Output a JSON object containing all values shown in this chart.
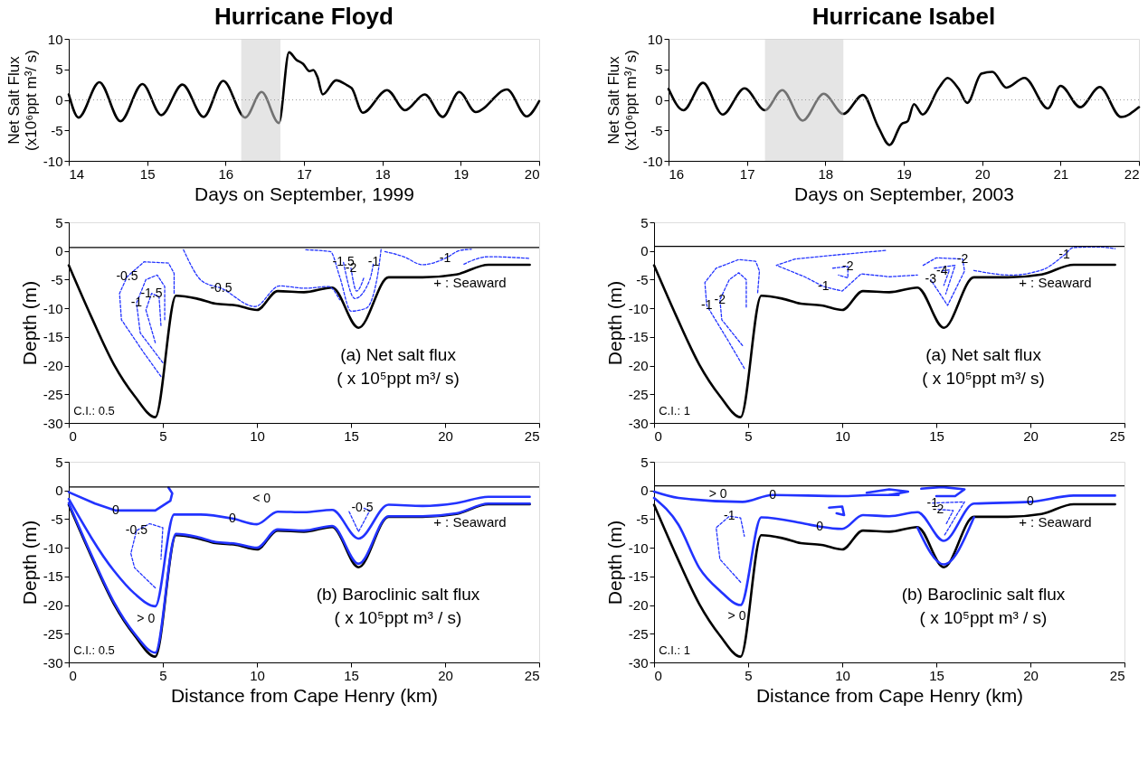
{
  "chart_data": [
    {
      "type": "line",
      "title": "Hurricane Floyd",
      "xlabel": "Days on September, 1999",
      "ylabel": "Net Salt Flux\n(x10⁶ppt m³/ s)",
      "xlim": [
        14,
        20
      ],
      "xticks": [
        14,
        15,
        16,
        17,
        18,
        19,
        20
      ],
      "ylim": [
        -10,
        10
      ],
      "yticks": [
        -10,
        -5,
        0,
        5,
        10
      ],
      "grid": false,
      "line_style": "solid",
      "series": [
        {
          "color": "#000000",
          "x": [
            14.0,
            14.125,
            14.39,
            14.66,
            14.94,
            15.18,
            15.45,
            15.72,
            15.97,
            16.25,
            16.46,
            16.68,
            16.81,
            16.9,
            16.99,
            17.07,
            17.12,
            17.17,
            17.24,
            17.41,
            17.55,
            17.61,
            17.75,
            18.06,
            18.29,
            18.54,
            18.77,
            18.98,
            19.19,
            19.59,
            19.84,
            20.0
          ],
          "values": [
            0.9,
            -2.9,
            2.9,
            -3.5,
            2.6,
            -2.5,
            2.5,
            -2.8,
            3.1,
            -2.9,
            1.3,
            -3.8,
            7.8,
            6.6,
            5.9,
            4.7,
            4.9,
            3.8,
            0.9,
            3.2,
            2.4,
            1.9,
            -2.1,
            1.6,
            -1.7,
            0.9,
            -2.8,
            1.3,
            -2.0,
            1.7,
            -2.7,
            -0.2
          ]
        }
      ],
      "bands": [
        {
          "axis": "x",
          "from": 16.2,
          "to": 16.7,
          "color": "#d0d0d0"
        }
      ],
      "ref_lines": [
        {
          "axis": "y",
          "value": 0,
          "color": "#999999",
          "line_style": "dotted"
        }
      ]
    },
    {
      "type": "line",
      "title": "Hurricane Isabel",
      "xlabel": "Days on September, 2003",
      "ylabel": "Net Salt Flux\n(x10⁶ppt m³/ s)",
      "xlim": [
        16,
        22
      ],
      "xticks": [
        16,
        17,
        18,
        19,
        20,
        21,
        22
      ],
      "ylim": [
        -10,
        10
      ],
      "yticks": [
        -10,
        -5,
        0,
        5,
        10
      ],
      "grid": false,
      "line_style": "solid",
      "series": [
        {
          "color": "#000000",
          "x": [
            16.0,
            16.19,
            16.44,
            16.69,
            16.97,
            17.23,
            17.45,
            17.71,
            17.98,
            18.23,
            18.48,
            18.67,
            18.82,
            18.97,
            19.05,
            19.13,
            19.24,
            19.45,
            19.56,
            19.7,
            19.81,
            19.99,
            20.13,
            20.31,
            20.54,
            20.84,
            21.0,
            21.25,
            21.5,
            21.77,
            22.0
          ],
          "values": [
            1.8,
            -1.7,
            2.8,
            -2.4,
            1.9,
            -1.7,
            1.6,
            -3.4,
            1.0,
            -2.3,
            0.8,
            -4.3,
            -7.4,
            -4.0,
            -3.5,
            -0.7,
            -2.4,
            2.0,
            3.6,
            1.8,
            -0.5,
            4.3,
            4.6,
            2.0,
            3.6,
            -1.4,
            2.3,
            -1.2,
            2.1,
            -2.8,
            -1.2
          ]
        }
      ],
      "bands": [
        {
          "axis": "x",
          "from": 17.23,
          "to": 18.23,
          "color": "#d0d0d0"
        }
      ],
      "ref_lines": [
        {
          "axis": "y",
          "value": 0,
          "color": "#999999",
          "line_style": "dotted"
        }
      ]
    },
    {
      "type": "line",
      "ylabel": "Depth (m)",
      "xlim": [
        0,
        25
      ],
      "xticks": [
        0,
        5,
        10,
        15,
        20,
        25
      ],
      "ylim": [
        -30,
        5
      ],
      "yticks": [
        -30,
        -25,
        -20,
        -15,
        -10,
        -5,
        0,
        5
      ],
      "grid": false,
      "series": [
        {
          "color": "#000000",
          "line_style": "solid",
          "x": [
            0,
            1.2,
            2.4,
            3.5,
            4.6,
            5.7,
            6.8,
            7.8,
            8.9,
            10,
            11.1,
            12.5,
            14,
            15.4,
            17,
            18.8,
            20.6,
            22.3,
            24.5
          ],
          "values": [
            -2.5,
            -11.5,
            -19.8,
            -25.3,
            -29,
            -7.8,
            -8.3,
            -9.2,
            -9.5,
            -10.3,
            -7,
            -7.2,
            -6.4,
            -13.4,
            -4.6,
            -4.6,
            -4.1,
            -2.4,
            -2.4
          ]
        },
        {
          "color": "#2233ff",
          "line_style": "dashed",
          "x": [
            4.9,
            4.0,
            2.8,
            2.7,
            3.1,
            4.0,
            5.3,
            5.6,
            5.6
          ],
          "values": [
            -21.9,
            -17.8,
            -12,
            -7.4,
            -4.5,
            -1.9,
            -2.1,
            -3.9,
            -7.5
          ]
        },
        {
          "color": "#2233ff",
          "line_style": "dashed",
          "x": [
            5.0,
            3.8,
            3.6,
            4.1,
            4.7,
            5.1,
            5.1
          ],
          "values": [
            -19.5,
            -14.3,
            -9.1,
            -5.0,
            -4.2,
            -6.2,
            -12
          ]
        },
        {
          "color": "#2233ff",
          "line_style": "dashed",
          "x": [
            4.6,
            4.1,
            4.4,
            4.8,
            4.9
          ],
          "values": [
            -16,
            -10.3,
            -7.4,
            -8,
            -13
          ]
        },
        {
          "color": "#2233ff",
          "line_style": "dashed",
          "x": [
            6.1,
            7.1,
            8.1,
            9.9,
            11.2,
            12.6,
            13.8,
            14.4
          ],
          "values": [
            0.2,
            -5.3,
            -6.5,
            -9.7,
            -6.1,
            -6.5,
            -6.2,
            -8.5
          ]
        },
        {
          "color": "#2233ff",
          "line_style": "dashed",
          "x": [
            12.6,
            13.9,
            14.4,
            15.0,
            15.8,
            16.4,
            16.6
          ],
          "values": [
            0.2,
            -0.1,
            -4.5,
            -10.5,
            -10,
            -4.5,
            0.3
          ]
        },
        {
          "color": "#2233ff",
          "line_style": "dashed",
          "x": [
            14.6,
            15.2,
            16.0,
            16.2
          ],
          "values": [
            -2,
            -8.3,
            -5,
            -2
          ]
        },
        {
          "color": "#2233ff",
          "line_style": "dashed",
          "x": [
            15.0,
            15.3,
            15.7
          ],
          "values": [
            -3,
            -7,
            -4.5
          ]
        },
        {
          "color": "#2233ff",
          "line_style": "dashed",
          "x": [
            16.8,
            17.8,
            18.8,
            20,
            20.8,
            21.4
          ],
          "values": [
            -0.1,
            -1,
            -2.4,
            -1.3,
            0.1,
            0.3
          ]
        },
        {
          "color": "#2233ff",
          "line_style": "dashed",
          "x": [
            21,
            22.3,
            24.5
          ],
          "values": [
            -2.3,
            -1.0,
            -1.3
          ]
        }
      ],
      "ref_lines": [
        {
          "axis": "y",
          "value": 0.6,
          "color": "#000000",
          "line_style": "solid"
        }
      ],
      "annotations": [
        "+ : Seaward",
        "(a) Net salt flux",
        "( x 10⁵ppt m³/ s)",
        "C.I.: 0.5",
        {
          "text": "-0.5",
          "x": 3.1,
          "y": -4.5
        },
        {
          "text": "-1",
          "x": 3.6,
          "y": -9.1
        },
        {
          "text": "-1.5",
          "x": 4.4,
          "y": -7.4
        },
        {
          "text": "-0.5",
          "x": 8.1,
          "y": -6.5
        },
        {
          "text": "-1.5",
          "x": 14.6,
          "y": -2
        },
        {
          "text": "-2",
          "x": 15.0,
          "y": -3
        },
        {
          "text": "-1",
          "x": 16.2,
          "y": -2
        },
        {
          "text": "-1",
          "x": 20,
          "y": -1.3
        }
      ]
    },
    {
      "type": "line",
      "ylabel": "Depth (m)",
      "xlim": [
        0,
        25
      ],
      "xticks": [
        0,
        5,
        10,
        15,
        20,
        25
      ],
      "ylim": [
        -30,
        5
      ],
      "yticks": [
        -30,
        -25,
        -20,
        -15,
        -10,
        -5,
        0,
        5
      ],
      "grid": false,
      "series": [
        {
          "color": "#000000",
          "line_style": "solid",
          "x": [
            0,
            1.2,
            2.4,
            3.5,
            4.6,
            5.7,
            6.8,
            7.8,
            8.9,
            10,
            11.1,
            12.5,
            14,
            15.4,
            17,
            18.8,
            20.6,
            22.3,
            24.5
          ],
          "values": [
            -2.5,
            -11.5,
            -19.8,
            -25.3,
            -29,
            -7.8,
            -8.3,
            -9.2,
            -9.5,
            -10.3,
            -7,
            -7.2,
            -6.4,
            -13.4,
            -4.6,
            -4.6,
            -4.1,
            -2.4,
            -2.4
          ]
        },
        {
          "color": "#2233ff",
          "line_style": "dashed",
          "x": [
            4.8,
            4.0,
            2.8,
            2.7,
            3.3,
            4.5,
            5.4,
            5.6,
            5.5
          ],
          "values": [
            -20.5,
            -16,
            -9.5,
            -5.5,
            -3,
            -1.5,
            -1.8,
            -3.5,
            -7.5
          ]
        },
        {
          "color": "#2233ff",
          "line_style": "dashed",
          "x": [
            4.7,
            3.6,
            3.5,
            4.0,
            4.5,
            4.9,
            4.9
          ],
          "values": [
            -16.5,
            -12,
            -8.5,
            -5,
            -3.8,
            -5,
            -10
          ]
        },
        {
          "color": "#2233ff",
          "line_style": "dashed",
          "x": [
            12.3,
            10,
            7.5,
            6.5,
            8,
            9,
            10,
            11,
            12.5,
            14
          ],
          "values": [
            0.1,
            -0.6,
            -1.4,
            -2.5,
            -4.5,
            -6.2,
            -7,
            -4,
            -4.5,
            -4.2
          ]
        },
        {
          "color": "#2233ff",
          "line_style": "dashed",
          "x": [
            9.5,
            10.3,
            10.3,
            9.8
          ],
          "values": [
            -3,
            -2.7,
            -4.7,
            -4.2
          ]
        },
        {
          "color": "#2233ff",
          "line_style": "dashed",
          "x": [
            14.3,
            15,
            16.4,
            16.5,
            15.6,
            14.7
          ],
          "values": [
            -2.5,
            -1.2,
            -1.4,
            -3.5,
            -9.5,
            -5
          ]
        },
        {
          "color": "#2233ff",
          "line_style": "dashed",
          "x": [
            14.9,
            16.0,
            15.5
          ],
          "values": [
            -3,
            -2.5,
            -7.5
          ]
        },
        {
          "color": "#2233ff",
          "line_style": "dashed",
          "x": [
            15.3,
            15.7,
            15.4
          ],
          "values": [
            -3.5,
            -3.3,
            -6
          ]
        },
        {
          "color": "#2233ff",
          "line_style": "dashed",
          "x": [
            17,
            19,
            20.7,
            21.8,
            22.3,
            23.5,
            24.5
          ],
          "values": [
            -3.4,
            -4.2,
            -3.2,
            -0.7,
            0.6,
            0.7,
            0.4
          ]
        }
      ],
      "ref_lines": [
        {
          "axis": "y",
          "value": 0.8,
          "color": "#000000",
          "line_style": "solid"
        }
      ],
      "annotations": [
        "+ : Seaward",
        "(a) Net salt flux",
        "( x 10⁵ppt m³/ s)",
        "C.I.: 1",
        {
          "text": "-1",
          "x": 2.8,
          "y": -9.5
        },
        {
          "text": "-2",
          "x": 3.5,
          "y": -8.5
        },
        {
          "text": "-2",
          "x": 10.3,
          "y": -2.7
        },
        {
          "text": "-1",
          "x": 9,
          "y": -6.2
        },
        {
          "text": "-3",
          "x": 14.7,
          "y": -5
        },
        {
          "text": "-4",
          "x": 15.3,
          "y": -3.5
        },
        {
          "text": "-2",
          "x": 16.4,
          "y": -1.4
        },
        {
          "text": "-1",
          "x": 21.8,
          "y": -0.7
        }
      ]
    },
    {
      "type": "line",
      "xlabel": "Distance from Cape Henry (km)",
      "ylabel": "Depth (m)",
      "xlim": [
        0,
        25
      ],
      "xticks": [
        0,
        5,
        10,
        15,
        20,
        25
      ],
      "ylim": [
        -30,
        5
      ],
      "yticks": [
        -30,
        -25,
        -20,
        -15,
        -10,
        -5,
        0,
        5
      ],
      "grid": false,
      "series": [
        {
          "color": "#000000",
          "line_style": "solid",
          "x": [
            0,
            1.2,
            2.4,
            3.5,
            4.6,
            5.7,
            6.8,
            7.8,
            8.9,
            10,
            11.1,
            12.5,
            14,
            15.4,
            17,
            18.8,
            20.6,
            22.3,
            24.5
          ],
          "values": [
            -2.5,
            -11.5,
            -19.8,
            -25.3,
            -29,
            -7.8,
            -8.3,
            -9.2,
            -9.5,
            -10.3,
            -7,
            -7.2,
            -6.4,
            -13.4,
            -4.6,
            -4.6,
            -4.1,
            -2.4,
            -2.4
          ]
        },
        {
          "color": "#2233ff",
          "line_style": "solid",
          "x": [
            0,
            1.2,
            2.4,
            3.5,
            4.6,
            5.7,
            6.8,
            7.8,
            8.9,
            10,
            11.1,
            12.5,
            14,
            15.4,
            17,
            18.8,
            20.6,
            22.3,
            24.5
          ],
          "values": [
            -2.2,
            -11.2,
            -19.5,
            -25,
            -28.3,
            -7.6,
            -8.1,
            -9,
            -9.3,
            -10,
            -6.8,
            -7,
            -6.2,
            -12.8,
            -4.5,
            -4.5,
            -4,
            -2.3,
            -2.3
          ]
        },
        {
          "color": "#2233ff",
          "line_style": "solid",
          "x": [
            0,
            1.4,
            2.5,
            4.6,
            5.4,
            5.5,
            5.3
          ],
          "values": [
            -0.3,
            -2.3,
            -3.5,
            -3.5,
            -1.8,
            -0.5,
            0.5
          ]
        },
        {
          "color": "#2233ff",
          "line_style": "solid",
          "x": [
            0,
            2.4,
            3.5,
            4.6,
            5.6,
            7,
            8.7,
            10,
            11.1,
            12.5,
            14,
            15.4,
            17,
            18.8,
            20.6,
            22.3,
            24.5
          ],
          "values": [
            -1.5,
            -14,
            -18,
            -20.2,
            -4.2,
            -4.2,
            -4.9,
            -5.9,
            -3.7,
            -3.8,
            -3.4,
            -8.4,
            -2.5,
            -2.7,
            -2.2,
            -1.1,
            -1.1
          ]
        },
        {
          "color": "#2233ff",
          "line_style": "dashed",
          "x": [
            4.6,
            3.5,
            3.3,
            3.6,
            4.3,
            5,
            4.9
          ],
          "values": [
            -17,
            -13.5,
            -11,
            -7,
            -5.8,
            -6.5,
            -12
          ]
        },
        {
          "color": "#2233ff",
          "line_style": "dashed",
          "x": [
            14.9,
            15.4,
            16,
            15.6
          ],
          "values": [
            -3.7,
            -7.2,
            -3.5,
            -3
          ]
        }
      ],
      "ref_lines": [
        {
          "axis": "y",
          "value": 0.6,
          "color": "#000000",
          "line_style": "solid"
        }
      ],
      "annotations": [
        "+ : Seaward",
        "(b) Baroclinic salt flux",
        "( x 10⁵ppt m³ / s)",
        "C.I.: 0.5",
        "< 0",
        "> 0",
        {
          "text": "0",
          "x": 2.5,
          "y": -3.5
        },
        {
          "text": "0",
          "x": 8.7,
          "y": -4.9
        },
        {
          "text": "-0.5",
          "x": 3.6,
          "y": -7
        },
        {
          "text": "-0.5",
          "x": 15.6,
          "y": -3
        }
      ]
    },
    {
      "type": "line",
      "xlabel": "Distance from Cape Henry (km)",
      "ylabel": "Depth (m)",
      "xlim": [
        0,
        25
      ],
      "xticks": [
        0,
        5,
        10,
        15,
        20,
        25
      ],
      "ylim": [
        -30,
        5
      ],
      "yticks": [
        -30,
        -25,
        -20,
        -15,
        -10,
        -5,
        0,
        5
      ],
      "grid": false,
      "series": [
        {
          "color": "#000000",
          "line_style": "solid",
          "x": [
            0,
            1.2,
            2.4,
            3.5,
            4.6,
            5.7,
            6.8,
            7.8,
            8.9,
            10,
            11.1,
            12.5,
            14,
            15.4,
            17,
            18.8,
            20.6,
            22.3,
            24.5
          ],
          "values": [
            -2.5,
            -11.5,
            -19.8,
            -25.3,
            -29,
            -7.8,
            -8.3,
            -9.2,
            -9.5,
            -10.3,
            -7,
            -7.2,
            -6.4,
            -13.4,
            -4.6,
            -4.6,
            -4.1,
            -2.4,
            -2.4
          ]
        },
        {
          "color": "#2233ff",
          "line_style": "solid",
          "x": [
            14,
            15.4,
            17
          ],
          "values": [
            -6.5,
            -12.9,
            -4.7
          ]
        },
        {
          "color": "#2233ff",
          "line_style": "solid",
          "x": [
            0,
            1.3,
            4.7,
            6.3,
            10,
            11.5,
            13
          ],
          "values": [
            -0.2,
            -1.3,
            -2,
            -0.8,
            -1,
            -0.8,
            -0.8
          ]
        },
        {
          "color": "#2233ff",
          "line_style": "solid",
          "x": [
            0,
            1.3,
            2.4,
            3.5,
            4.6,
            5.7,
            8,
            8.8,
            10,
            11.1,
            12.5,
            14,
            15.4,
            17,
            20,
            22.3,
            24.5
          ],
          "values": [
            -1.3,
            -6,
            -13.5,
            -17.5,
            -20,
            -4.7,
            -5.8,
            -6.3,
            -6.7,
            -4.3,
            -4.5,
            -3.8,
            -8.8,
            -2.3,
            -2,
            -0.9,
            -0.9
          ]
        },
        {
          "color": "#2233ff",
          "line_style": "solid",
          "x": [
            11.3,
            12.5,
            13.5,
            12.5
          ],
          "values": [
            -0.4,
            0.2,
            -0.2,
            -0.8
          ]
        },
        {
          "color": "#2233ff",
          "line_style": "solid",
          "x": [
            14.2,
            15.3,
            16.5,
            16,
            15
          ],
          "values": [
            0.3,
            0.6,
            0.2,
            -1,
            -1
          ]
        },
        {
          "color": "#2233ff",
          "line_style": "solid",
          "x": [
            9.3,
            10,
            10.1,
            9.7
          ],
          "values": [
            -3,
            -2.8,
            -4.3,
            -4
          ]
        },
        {
          "color": "#2233ff",
          "line_style": "dashed",
          "x": [
            4.6,
            3.5,
            3.3,
            4,
            4.6,
            4.8
          ],
          "values": [
            -16,
            -12,
            -6.5,
            -4.5,
            -4.8,
            -8
          ]
        },
        {
          "color": "#2233ff",
          "line_style": "dashed",
          "x": [
            14.8,
            16.5,
            15.4
          ],
          "values": [
            -2.2,
            -2,
            -8
          ]
        },
        {
          "color": "#2233ff",
          "line_style": "dashed",
          "x": [
            15.1,
            15.9,
            15.5
          ],
          "values": [
            -3.3,
            -3.5,
            -6
          ]
        }
      ],
      "ref_lines": [
        {
          "axis": "y",
          "value": 0.8,
          "color": "#000000",
          "line_style": "solid"
        }
      ],
      "annotations": [
        "+ : Seaward",
        "(b) Baroclinic salt flux",
        "( x 10⁵ppt m³ / s)",
        "C.I.: 1",
        "> 0",
        "> 0",
        {
          "text": "0",
          "x": 6.3,
          "y": -0.8
        },
        {
          "text": "0",
          "x": 8.8,
          "y": -6.3
        },
        {
          "text": "0",
          "x": 20,
          "y": -2
        },
        {
          "text": "-1",
          "x": 4,
          "y": -4.5
        },
        {
          "text": "-1",
          "x": 14.8,
          "y": -2.2
        },
        {
          "text": "-2",
          "x": 15.1,
          "y": -3.3
        }
      ]
    }
  ]
}
